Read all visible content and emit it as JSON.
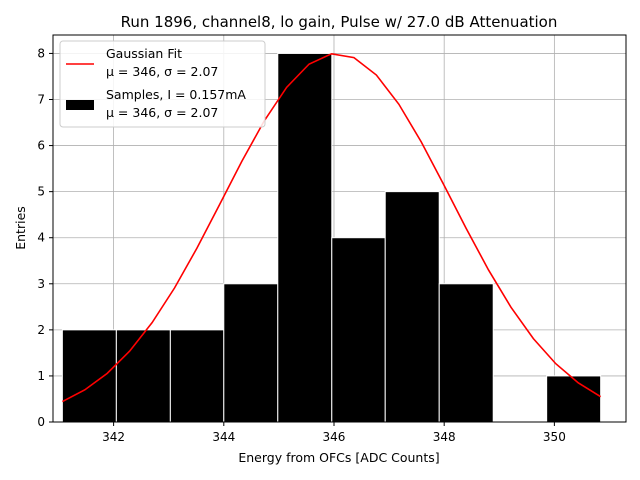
{
  "chart_data": {
    "type": "bar",
    "title": "Run 1896, channel8, lo gain, Pulse w/ 27.0 dB Attenuation",
    "xlabel": "Energy from OFCs [ADC Counts]",
    "ylabel": "Entries",
    "xlim": [
      340.9,
      351.3
    ],
    "ylim": [
      0,
      8.4
    ],
    "xticks": [
      342,
      344,
      346,
      348,
      350
    ],
    "yticks": [
      0,
      1,
      2,
      3,
      4,
      5,
      6,
      7,
      8
    ],
    "grid": true,
    "legend_position": "upper-left",
    "histogram": {
      "name": "Samples, I = 0.157mA",
      "stats": "μ = 346, σ = 2.07",
      "color": "#000000",
      "edge_color": "#ffffff",
      "bins": [
        {
          "left": 341.07,
          "right": 342.05,
          "count": 2
        },
        {
          "left": 342.05,
          "right": 343.03,
          "count": 2
        },
        {
          "left": 343.03,
          "right": 344.0,
          "count": 2
        },
        {
          "left": 344.0,
          "right": 344.98,
          "count": 3
        },
        {
          "left": 344.98,
          "right": 345.96,
          "count": 8
        },
        {
          "left": 345.96,
          "right": 346.93,
          "count": 4
        },
        {
          "left": 346.93,
          "right": 347.91,
          "count": 5
        },
        {
          "left": 347.91,
          "right": 348.89,
          "count": 3
        },
        {
          "left": 348.89,
          "right": 349.86,
          "count": 0
        },
        {
          "left": 349.86,
          "right": 350.84,
          "count": 1
        }
      ]
    },
    "fit": {
      "name": "Gaussian Fit",
      "stats": "μ = 346, σ = 2.07",
      "color": "#ff0000",
      "amplitude": 8.0,
      "mean": 346.05,
      "sigma": 2.07,
      "x_start": 341.07,
      "x_end": 350.84
    }
  }
}
